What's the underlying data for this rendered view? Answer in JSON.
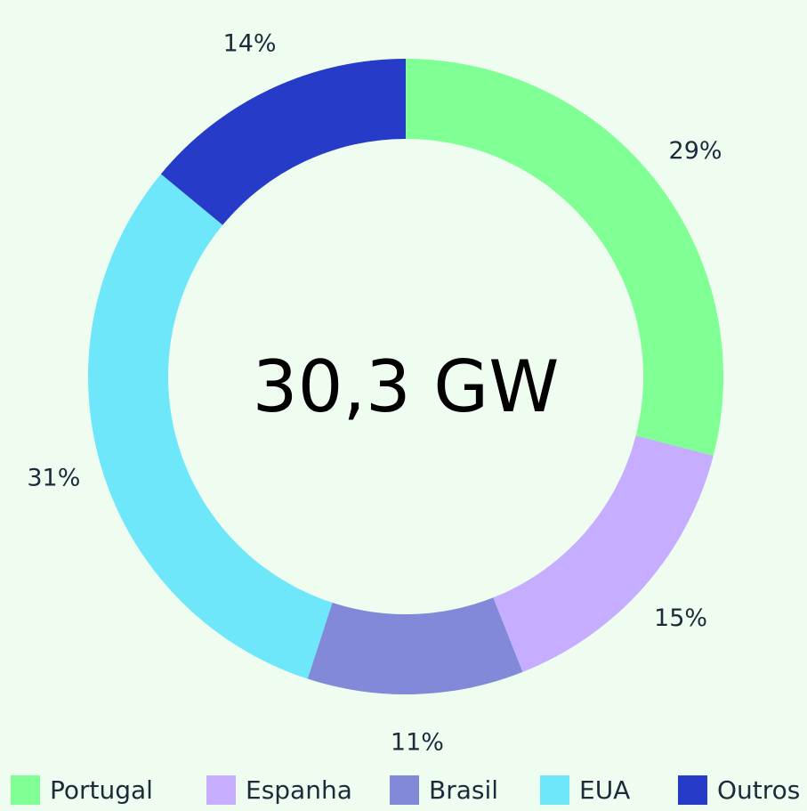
{
  "chart_data": {
    "type": "donut",
    "center_label": "30,3 GW",
    "categories": [
      "Portugal",
      "Espanha",
      "Brasil",
      "EUA",
      "Outros"
    ],
    "values": [
      29,
      15,
      11,
      31,
      14
    ],
    "value_labels": [
      "29%",
      "15%",
      "11%",
      "31%",
      "14%"
    ],
    "colors": [
      "#80ff95",
      "#c6adff",
      "#8389d9",
      "#6ee7fa",
      "#263bc8"
    ],
    "legend": "bottom"
  }
}
